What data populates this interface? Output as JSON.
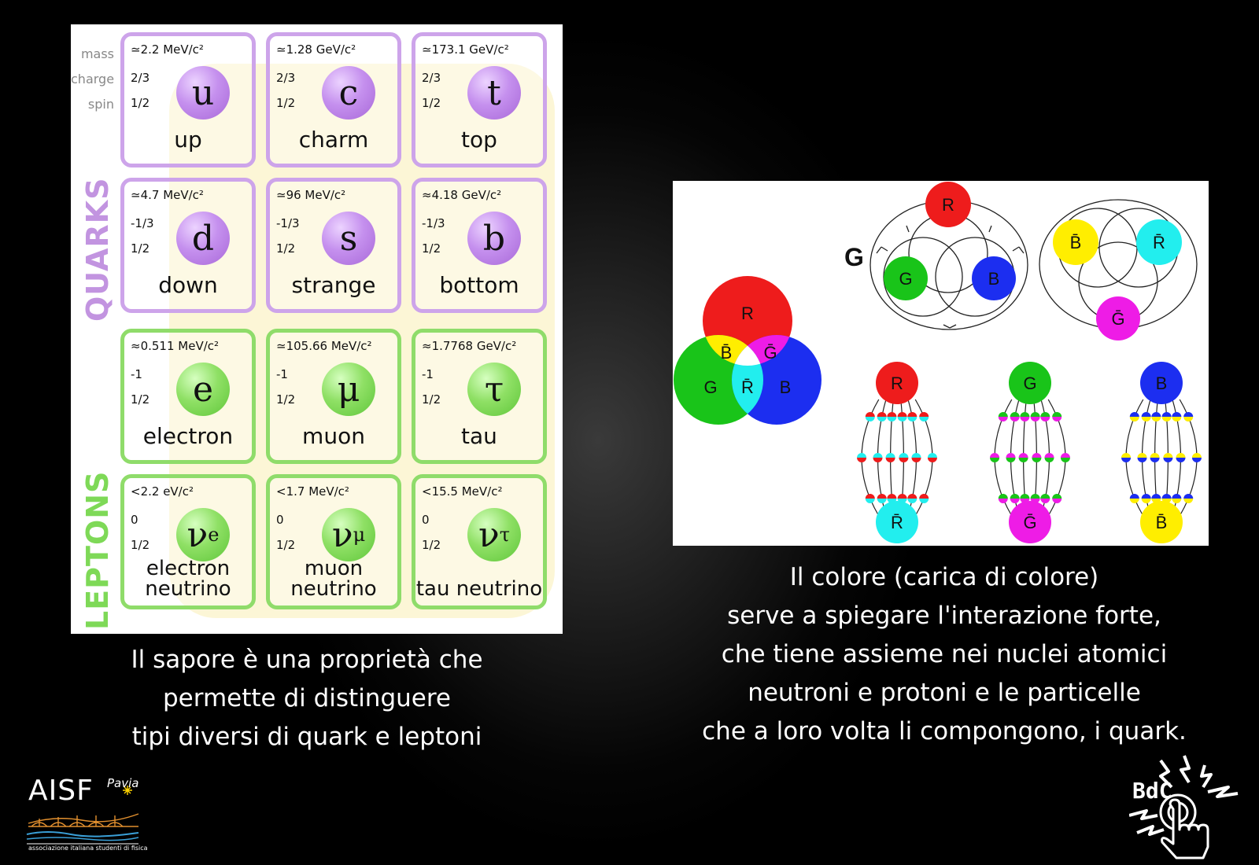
{
  "table": {
    "row_labels": [
      "mass",
      "charge",
      "spin"
    ],
    "group_quarks": "QUARKS",
    "group_leptons": "LEPTONS",
    "particles": [
      {
        "mass": "≃2.2 MeV/c²",
        "charge": "2/3",
        "spin": "1/2",
        "symbol": "u",
        "sub": "",
        "name": "up",
        "type": "quark"
      },
      {
        "mass": "≃1.28 GeV/c²",
        "charge": "2/3",
        "spin": "1/2",
        "symbol": "c",
        "sub": "",
        "name": "charm",
        "type": "quark"
      },
      {
        "mass": "≃173.1 GeV/c²",
        "charge": "2/3",
        "spin": "1/2",
        "symbol": "t",
        "sub": "",
        "name": "top",
        "type": "quark"
      },
      {
        "mass": "≃4.7 MeV/c²",
        "charge": "-1/3",
        "spin": "1/2",
        "symbol": "d",
        "sub": "",
        "name": "down",
        "type": "quark"
      },
      {
        "mass": "≃96 MeV/c²",
        "charge": "-1/3",
        "spin": "1/2",
        "symbol": "s",
        "sub": "",
        "name": "strange",
        "type": "quark"
      },
      {
        "mass": "≈4.18 GeV/c²",
        "charge": "-1/3",
        "spin": "1/2",
        "symbol": "b",
        "sub": "",
        "name": "bottom",
        "type": "quark"
      },
      {
        "mass": "≈0.511 MeV/c²",
        "charge": "-1",
        "spin": "1/2",
        "symbol": "e",
        "sub": "",
        "name": "electron",
        "type": "lepton"
      },
      {
        "mass": "≃105.66 MeV/c²",
        "charge": "-1",
        "spin": "1/2",
        "symbol": "μ",
        "sub": "",
        "name": "muon",
        "type": "lepton"
      },
      {
        "mass": "≈1.7768 GeV/c²",
        "charge": "-1",
        "spin": "1/2",
        "symbol": "τ",
        "sub": "",
        "name": "tau",
        "type": "lepton"
      },
      {
        "mass": "<2.2 eV/c²",
        "charge": "0",
        "spin": "1/2",
        "symbol": "ν",
        "sub": "e",
        "name": "electron neutrino",
        "type": "lepton"
      },
      {
        "mass": "<1.7 MeV/c²",
        "charge": "0",
        "spin": "1/2",
        "symbol": "ν",
        "sub": "μ",
        "name": "muon neutrino",
        "type": "lepton"
      },
      {
        "mass": "<15.5 MeV/c²",
        "charge": "0",
        "spin": "1/2",
        "symbol": "ν",
        "sub": "τ",
        "name": "tau neutrino",
        "type": "lepton"
      }
    ],
    "colors": {
      "quark_border": "#cda4ea",
      "lepton_border": "#8fdc6a",
      "quark_label": "#c294e0",
      "lepton_label": "#7ed957"
    }
  },
  "color_diagram": {
    "venn": {
      "top": "R",
      "left": "G",
      "right": "B",
      "center": "R̄",
      "top_left": "B̄",
      "top_right": "Ḡ"
    },
    "gluon_label": "G",
    "triangle_colors": [
      "R",
      "G",
      "B"
    ],
    "anti_triangle": [
      "B̄",
      "R̄",
      "Ḡ"
    ],
    "mesons": [
      {
        "top": "R",
        "bottom": "R̄"
      },
      {
        "top": "G",
        "bottom": "Ḡ"
      },
      {
        "top": "B",
        "bottom": "B̄"
      }
    ],
    "colors": {
      "red": "#ee1c1c",
      "green": "#19c419",
      "blue": "#1c2ef0",
      "yellow": "#ffee00",
      "cyan": "#22eeee",
      "magenta": "#ee1ce6"
    }
  },
  "captions": {
    "left": [
      "Il sapore è una proprietà che",
      "permette di distinguere",
      "tipi diversi di quark e leptoni"
    ],
    "right": [
      "Il colore (carica di colore)",
      "serve a spiegare l'interazione forte,",
      "che tiene assieme nei nuclei atomici",
      "neutroni e protoni  e le particelle",
      "che a loro volta li compongono, i quark."
    ]
  },
  "logos": {
    "aisf_title": "AISF",
    "aisf_city": "Pavia",
    "aisf_subtitle": "associazione italiana studenti di fisica",
    "bdc": "BdC"
  }
}
